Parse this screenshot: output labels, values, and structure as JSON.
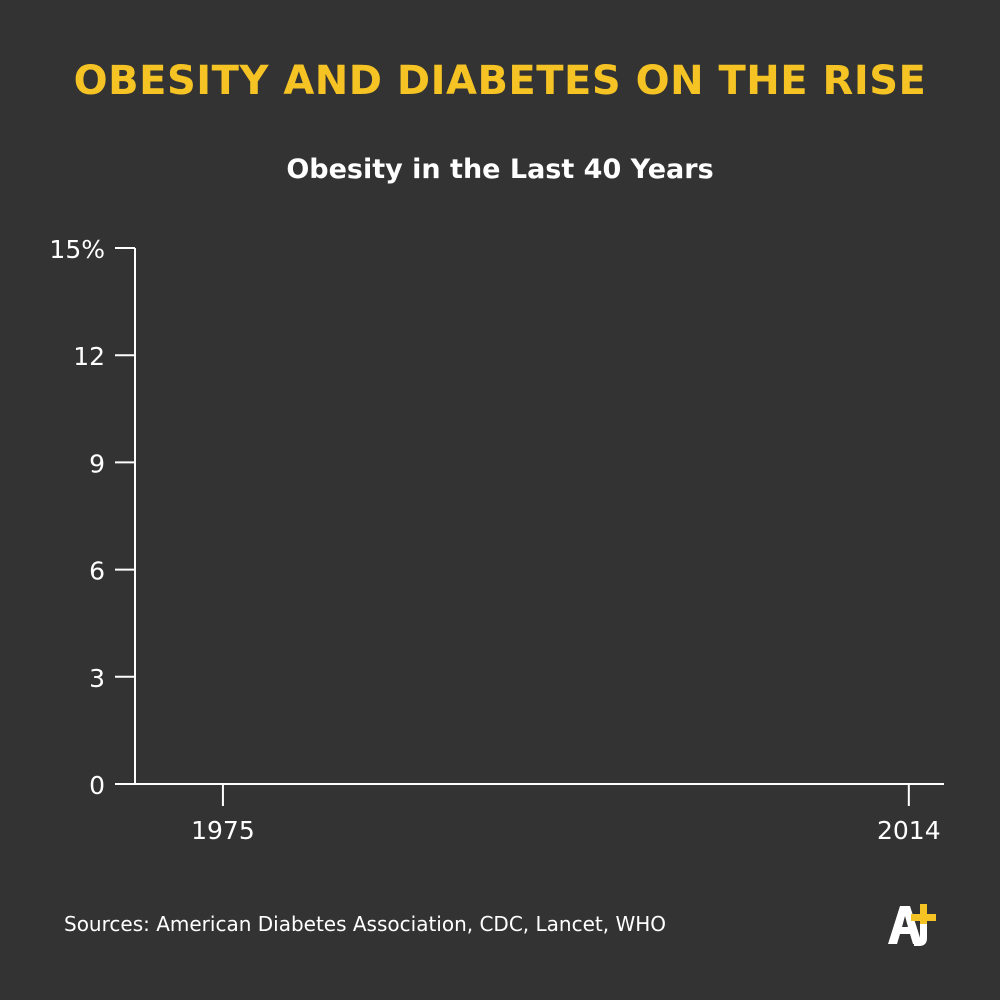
{
  "headline": "OBESITY AND DIABETES ON THE RISE",
  "sources": "Sources: American Diabetes Association, CDC, Lancet, WHO",
  "colors": {
    "background": "#333333",
    "headline": "#f6c324",
    "text": "#ffffff",
    "axis": "#ffffff",
    "logo_accent": "#f6c324"
  },
  "logo": {
    "icon": "aj-plus-logo-icon"
  },
  "chart_data": {
    "type": "line",
    "title": "Obesity in the Last 40 Years",
    "xlabel": "",
    "ylabel": "",
    "x_ticks": [
      "1975",
      "2014"
    ],
    "xlim": [
      1970,
      2016
    ],
    "y_ticks": [
      "0",
      "3",
      "6",
      "9",
      "12",
      "15%"
    ],
    "ylim": [
      0,
      15
    ],
    "grid": false,
    "series": []
  }
}
